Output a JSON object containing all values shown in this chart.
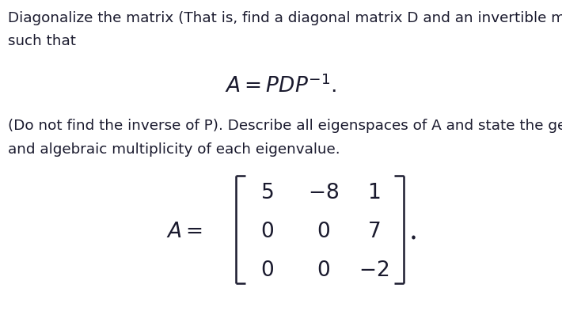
{
  "background_color": "#ffffff",
  "text_color": "#1a1a2e",
  "paragraph1_line1": "Diagonalize the matrix (That is, find a diagonal matrix D and an invertible matrix P",
  "paragraph1_line2": "such that",
  "formula": "$A = PDP^{-1}.$",
  "paragraph2_line1": "(Do not find the inverse of P). Describe all eigenspaces of A and state the geometric",
  "paragraph2_line2": "and algebraic multiplicity of each eigenvalue.",
  "matrix_row0": [
    "5",
    "-8",
    "1"
  ],
  "matrix_row1": [
    "0",
    "0",
    "7"
  ],
  "matrix_row2": [
    "0",
    "0",
    "-2"
  ],
  "body_fontsize": 13.2,
  "formula_fontsize": 19,
  "matrix_fontsize": 19,
  "figwidth": 7.1,
  "figheight": 3.93,
  "dpi": 100
}
